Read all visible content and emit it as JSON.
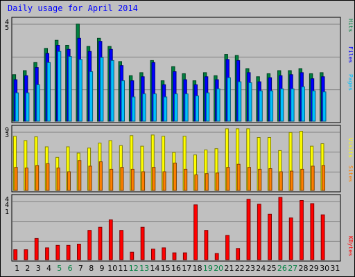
{
  "title": "Daily usage for April 2014",
  "chart_data": [
    {
      "type": "bar",
      "categories": [
        "1",
        "2",
        "3",
        "4",
        "5",
        "6",
        "7",
        "8",
        "9",
        "10",
        "11",
        "12",
        "13",
        "14",
        "15",
        "16",
        "17",
        "18",
        "19",
        "20",
        "21",
        "22",
        "23",
        "24",
        "25",
        "26",
        "27",
        "28",
        "29",
        "30",
        "31"
      ],
      "weekend_days": [
        "5",
        "6",
        "12",
        "13",
        "19",
        "20",
        "26",
        "27"
      ],
      "ylim": [
        0,
        1
      ],
      "grid": true,
      "tick_labels": [
        "4",
        "5"
      ],
      "legend_label_vertical": [
        "Hits",
        "Files",
        "Pages"
      ],
      "series": [
        {
          "color": "#008040",
          "values": [
            0.46,
            0.5,
            0.58,
            0.72,
            0.8,
            0.75,
            0.96,
            0.74,
            0.82,
            0.74,
            0.59,
            0.45,
            0.48,
            0.6,
            0.4,
            0.54,
            0.47,
            0.4,
            0.48,
            0.45,
            0.66,
            0.65,
            0.52,
            0.44,
            0.47,
            0.5,
            0.5,
            0.52,
            0.47,
            0.48,
            null
          ]
        },
        {
          "color": "#0000ff",
          "values": [
            0.41,
            0.45,
            0.53,
            0.67,
            0.75,
            0.71,
            0.82,
            0.69,
            0.79,
            0.71,
            0.55,
            0.4,
            0.44,
            0.58,
            0.36,
            0.49,
            0.41,
            0.36,
            0.44,
            0.41,
            0.61,
            0.6,
            0.48,
            0.39,
            0.43,
            0.45,
            0.46,
            0.48,
            0.42,
            0.44,
            null
          ]
        },
        {
          "color": "#00c0ff",
          "values": [
            0.28,
            0.28,
            0.36,
            0.58,
            0.69,
            0.64,
            0.61,
            0.49,
            0.63,
            0.6,
            0.4,
            0.24,
            0.27,
            0.27,
            0.24,
            0.27,
            0.27,
            0.25,
            0.28,
            0.32,
            0.43,
            0.39,
            0.38,
            0.3,
            0.3,
            0.32,
            0.32,
            0.34,
            0.3,
            0.29,
            null
          ]
        }
      ]
    },
    {
      "type": "bar",
      "categories": [
        "1",
        "2",
        "3",
        "4",
        "5",
        "6",
        "7",
        "8",
        "9",
        "10",
        "11",
        "12",
        "13",
        "14",
        "15",
        "16",
        "17",
        "18",
        "19",
        "20",
        "21",
        "22",
        "23",
        "24",
        "25",
        "26",
        "27",
        "28",
        "29",
        "30",
        "31"
      ],
      "ylim": [
        0,
        1
      ],
      "grid": true,
      "tick_labels": [
        "9",
        "3"
      ],
      "legend_label_vertical": [
        "Visits",
        "Sites"
      ],
      "series": [
        {
          "color": "#ffff00",
          "values": [
            0.87,
            0.8,
            0.86,
            0.7,
            0.53,
            0.7,
            0.6,
            0.68,
            0.76,
            0.8,
            0.72,
            0.88,
            0.71,
            0.89,
            0.87,
            0.61,
            0.87,
            0.57,
            0.65,
            0.67,
            0.99,
            0.99,
            0.99,
            0.85,
            0.85,
            0.64,
            0.93,
            0.95,
            0.71,
            0.75,
            null
          ]
        },
        {
          "color": "#ff8000",
          "values": [
            0.37,
            0.36,
            0.4,
            0.43,
            0.36,
            0.3,
            0.48,
            0.39,
            0.46,
            0.34,
            0.37,
            0.34,
            0.3,
            0.37,
            0.3,
            0.44,
            0.34,
            0.25,
            0.27,
            0.28,
            0.37,
            0.42,
            0.37,
            0.34,
            0.35,
            0.3,
            0.31,
            0.34,
            0.39,
            0.4,
            null
          ]
        }
      ]
    },
    {
      "type": "bar",
      "categories": [
        "1",
        "2",
        "3",
        "4",
        "5",
        "6",
        "7",
        "8",
        "9",
        "10",
        "11",
        "12",
        "13",
        "14",
        "15",
        "16",
        "17",
        "18",
        "19",
        "20",
        "21",
        "22",
        "23",
        "24",
        "25",
        "26",
        "27",
        "28",
        "29",
        "30",
        "31"
      ],
      "ylim": [
        0,
        1
      ],
      "grid": true,
      "tick_labels": [
        "4",
        "4",
        "1"
      ],
      "legend_label_vertical": [
        "KBytes"
      ],
      "series": [
        {
          "color": "#ff0000",
          "values": [
            0.16,
            0.16,
            0.34,
            0.19,
            0.23,
            0.23,
            0.25,
            0.47,
            0.52,
            0.64,
            0.47,
            0.12,
            0.52,
            0.17,
            0.19,
            0.11,
            0.11,
            0.88,
            0.47,
            0.1,
            0.39,
            0.18,
            0.97,
            0.89,
            0.73,
            1.0,
            0.67,
            0.95,
            0.9,
            0.72,
            null
          ]
        }
      ]
    }
  ]
}
